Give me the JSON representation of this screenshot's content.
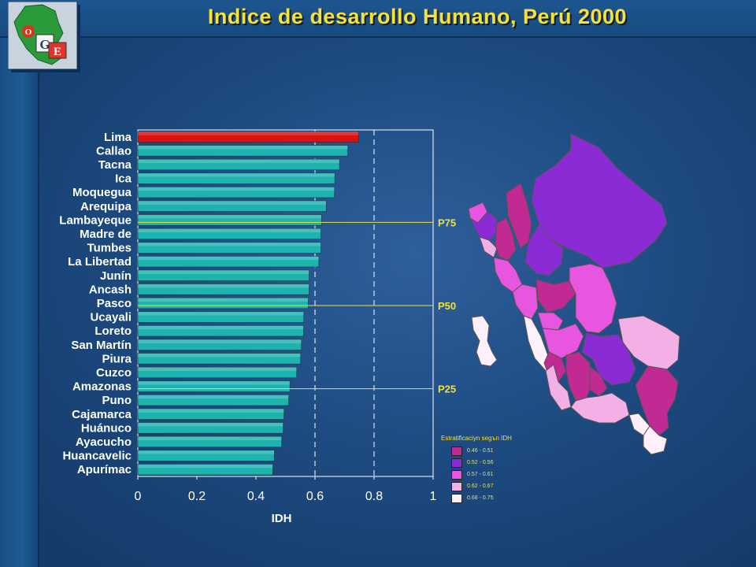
{
  "title": "Indice de desarrollo Humano, Perú 2000",
  "logo": {
    "letters": [
      "O",
      "G",
      "E"
    ]
  },
  "chart_data": {
    "type": "bar",
    "orientation": "horizontal",
    "xlabel": "IDH",
    "xlim": [
      0,
      1
    ],
    "xticks": [
      "0",
      "0.2",
      "0.4",
      "0.6",
      "0.8",
      "1"
    ],
    "grid": false,
    "categories": [
      "Lima",
      "Callao",
      "Tacna",
      "Ica",
      "Moquegua",
      "Arequipa",
      "Lambayeque",
      "Madre de",
      "Tumbes",
      "La Libertad",
      "Junín",
      "Ancash",
      "Pasco",
      "Ucayali",
      "Loreto",
      "San Martín",
      "Piura",
      "Cuzco",
      "Amazonas",
      "Puno",
      "Cajamarca",
      "Huánuco",
      "Ayacucho",
      "Huancavelic",
      "Apurímac"
    ],
    "values": [
      0.747,
      0.711,
      0.683,
      0.667,
      0.666,
      0.638,
      0.622,
      0.62,
      0.62,
      0.613,
      0.58,
      0.58,
      0.577,
      0.562,
      0.561,
      0.554,
      0.551,
      0.538,
      0.515,
      0.511,
      0.495,
      0.492,
      0.487,
      0.462,
      0.457
    ],
    "bar_colors": {
      "highlight": "#dd1111",
      "default": "#1fb3b0"
    },
    "reference_lines": [
      {
        "x": 0.6,
        "style": "dashed"
      },
      {
        "x": 0.8,
        "style": "dashed"
      }
    ],
    "percentiles": [
      {
        "label": "P75",
        "category": "Lambayeque"
      },
      {
        "label": "P50",
        "category": "Pasco"
      },
      {
        "label": "P25",
        "category": "Amazonas"
      }
    ]
  },
  "legend": {
    "title": "Estratificaciуn segъn IDH",
    "items": [
      {
        "label": "0.46 - 0.51",
        "color": "#c02a92"
      },
      {
        "label": "0.52 - 0.56",
        "color": "#8a2bd6"
      },
      {
        "label": "0.57 - 0.61",
        "color": "#e855e0"
      },
      {
        "label": "0.62 - 0.67",
        "color": "#f2b0e6"
      },
      {
        "label": "0.68 - 0.75",
        "color": "#fdf0fb"
      }
    ]
  }
}
